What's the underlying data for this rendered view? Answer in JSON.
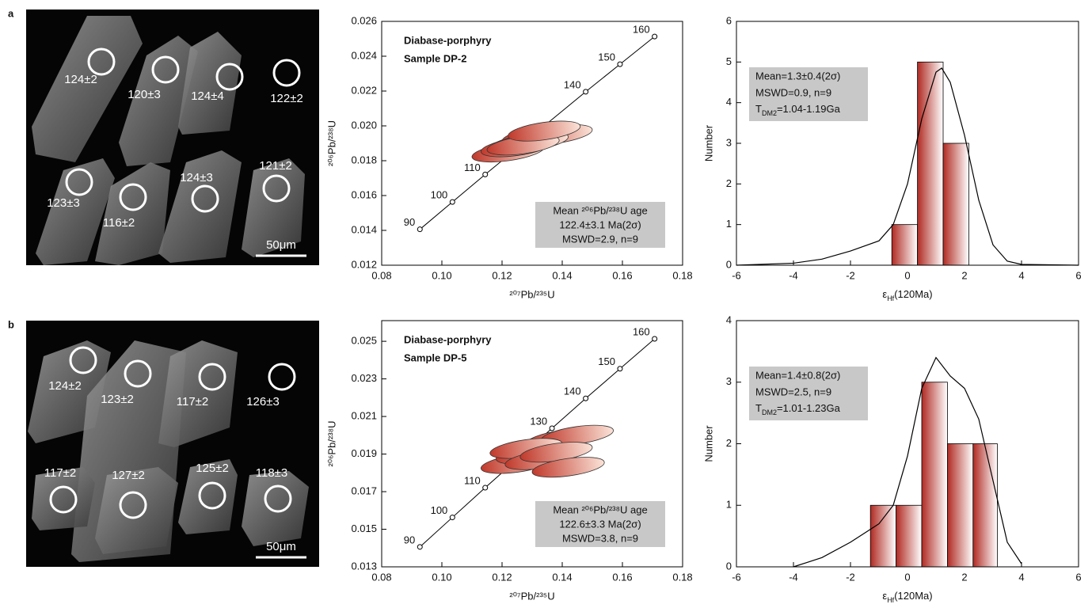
{
  "images": [
    {
      "label": "a",
      "spots": [
        "124±2",
        "120±3",
        "124±4",
        "122±2",
        "123±3",
        "116±2",
        "124±3",
        "121±2"
      ],
      "scale": "50μm"
    },
    {
      "label": "b",
      "spots": [
        "124±2",
        "123±2",
        "117±2",
        "126±3",
        "117±2",
        "127±2",
        "125±2",
        "118±3"
      ],
      "scale": "50μm"
    }
  ],
  "chart_data": [
    {
      "type": "concordia",
      "title": [
        "Diabase-porphyry",
        "Sample DP-2"
      ],
      "xlabel": "²⁰⁷Pb/²³⁵U",
      "ylabel": "²⁰⁶Pb/²³⁸U",
      "xlim": [
        0.08,
        0.18
      ],
      "xticks": [
        0.08,
        {
          "value": 0.1,
          "label": "0.10"
        },
        0.12,
        0.14,
        0.16,
        0.18
      ],
      "ylim": [
        0.012,
        0.026
      ],
      "yticks": [
        0.012,
        0.014,
        0.016,
        0.018,
        {
          "value": 0.02,
          "label": "0.020"
        },
        0.022,
        0.024,
        0.026
      ],
      "concordia": {
        "ages": [
          90,
          100,
          110,
          140,
          150,
          160
        ],
        "x": [
          0.0927,
          0.1035,
          0.1144,
          0.1478,
          0.1592,
          0.1707
        ],
        "y": [
          0.01406,
          0.01563,
          0.01721,
          0.02196,
          0.02354,
          0.02513
        ]
      },
      "ellipses": {
        "color": "#c0392b",
        "x": [
          0.122,
          0.128,
          0.132,
          0.135,
          0.138,
          0.125,
          0.13,
          0.127,
          0.134
        ],
        "y": [
          0.0185,
          0.019,
          0.0194,
          0.0196,
          0.0195,
          0.0188,
          0.0191,
          0.0189,
          0.0197
        ]
      },
      "annotation": [
        "Mean ²⁰⁶Pb/²³⁸U age",
        "122.4±3.1 Ma(2σ)",
        "MSWD=2.9, n=9"
      ]
    },
    {
      "type": "histogram",
      "xlabel": [
        "ε",
        "Hf",
        "(120Ma)"
      ],
      "ylabel": "Number",
      "bins": [
        -0.55,
        0.35,
        1.25,
        2.15
      ],
      "values": [
        1,
        5,
        3
      ],
      "color": "#c0392b",
      "curve": {
        "x": [
          -6,
          -4,
          -3,
          -2,
          -1,
          -0.5,
          0,
          0.5,
          1,
          1.2,
          1.5,
          2,
          2.5,
          3,
          3.5,
          4,
          6
        ],
        "y": [
          0,
          0.05,
          0.15,
          0.35,
          0.6,
          1.0,
          2.0,
          3.6,
          4.75,
          4.85,
          4.5,
          3.2,
          1.6,
          0.5,
          0.1,
          0.02,
          0
        ]
      },
      "xlim": [
        -6,
        6
      ],
      "xticks": [
        -6,
        -4,
        -2,
        0,
        2,
        4,
        6
      ],
      "ylim": [
        0,
        6
      ],
      "yticks": [
        0,
        1,
        2,
        3,
        4,
        5,
        6
      ],
      "annotation": [
        "Mean=1.3±0.4(2σ)",
        "MSWD=0.9, n=9",
        [
          "T",
          "DM2",
          "=1.04-1.19Ga"
        ]
      ]
    },
    {
      "type": "concordia",
      "title": [
        "Diabase-porphyry",
        "Sample DP-5"
      ],
      "xlabel": "²⁰⁷Pb/²³⁵U",
      "ylabel": "²⁰⁶Pb/²³⁸U",
      "xlim": [
        0.08,
        0.18
      ],
      "xticks": [
        0.08,
        {
          "value": 0.1,
          "label": "0.10"
        },
        0.12,
        0.14,
        0.16,
        0.18
      ],
      "ylim": [
        0.013,
        0.0261
      ],
      "yticks": [
        0.013,
        0.015,
        0.017,
        0.019,
        0.021,
        0.023,
        0.025
      ],
      "concordia": {
        "ages": [
          90,
          100,
          110,
          130,
          140,
          150,
          160
        ],
        "x": [
          0.0927,
          0.1035,
          0.1144,
          0.1366,
          0.1478,
          0.1592,
          0.1707
        ],
        "y": [
          0.01406,
          0.01563,
          0.01721,
          0.02037,
          0.02196,
          0.02354,
          0.02513
        ]
      },
      "ellipses": {
        "color": "#c0392b",
        "x": [
          0.125,
          0.13,
          0.135,
          0.14,
          0.145,
          0.128,
          0.133,
          0.138,
          0.142
        ],
        "y": [
          0.0185,
          0.019,
          0.0195,
          0.0198,
          0.02,
          0.0193,
          0.0187,
          0.0191,
          0.0183
        ]
      },
      "annotation": [
        "Mean ²⁰⁶Pb/²³⁸U age",
        "122.6±3.3 Ma(2σ)",
        "MSWD=3.8, n=9"
      ]
    },
    {
      "type": "histogram",
      "xlabel": [
        "ε",
        "Hf",
        "(120Ma)"
      ],
      "ylabel": "Number",
      "bins": [
        -1.3,
        -0.4,
        0.5,
        1.4,
        2.3,
        3.15
      ],
      "values": [
        1,
        1,
        3,
        2,
        2
      ],
      "color": "#c0392b",
      "curve": {
        "x": [
          -4,
          -3,
          -2,
          -1.5,
          -1,
          -0.5,
          0,
          0.5,
          1,
          1.5,
          2,
          2.5,
          3,
          3.5,
          4
        ],
        "y": [
          0,
          0.15,
          0.4,
          0.55,
          0.7,
          1.0,
          1.8,
          2.9,
          3.4,
          3.1,
          2.9,
          2.4,
          1.4,
          0.4,
          0.05
        ]
      },
      "xlim": [
        -6,
        6
      ],
      "xticks": [
        -6,
        -4,
        -2,
        0,
        2,
        4,
        6
      ],
      "ylim": [
        0,
        4
      ],
      "yticks": [
        0,
        1,
        2,
        3,
        4
      ],
      "annotation": [
        "Mean=1.4±0.8(2σ)",
        "MSWD=2.5, n=9",
        [
          "T",
          "DM2",
          "=1.01-1.23Ga"
        ]
      ]
    }
  ]
}
